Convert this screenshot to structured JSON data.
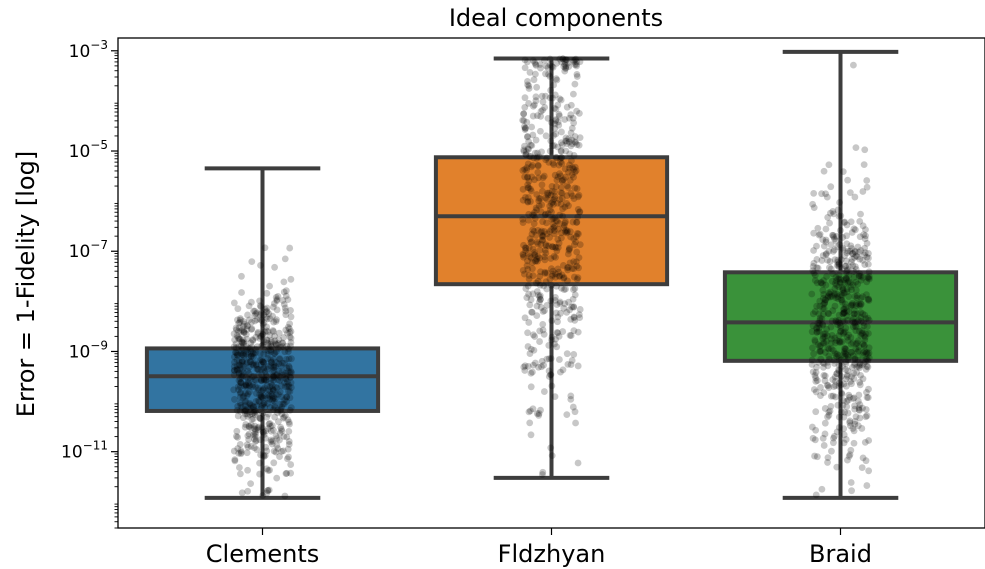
{
  "chart_data": {
    "type": "box",
    "title": "Ideal components",
    "xlabel": "",
    "ylabel": "Error = 1-Fidelity [log]",
    "yscale": "log",
    "ylim": [
      3e-13,
      0.0018
    ],
    "yticks": [
      {
        "value": 0.001,
        "label": "10",
        "exp": "−3"
      },
      {
        "value": 1e-05,
        "label": "10",
        "exp": "−5"
      },
      {
        "value": 1e-07,
        "label": "10",
        "exp": "−7"
      },
      {
        "value": 1e-09,
        "label": "10",
        "exp": "−9"
      },
      {
        "value": 1e-11,
        "label": "10",
        "exp": "−11"
      }
    ],
    "categories": [
      "Clements",
      "Fldzhyan",
      "Braid"
    ],
    "boxes": [
      {
        "name": "Clements",
        "color": "#3274a1",
        "whisker_low": 1.2e-12,
        "q1": 6.5e-11,
        "median": 3.2e-10,
        "q3": 1.15e-09,
        "whisker_high": 4.5e-06
      },
      {
        "name": "Fldzhyan",
        "color": "#e1812c",
        "whisker_low": 3e-12,
        "q1": 2.2e-08,
        "median": 5e-07,
        "q3": 7.5e-06,
        "whisker_high": 0.0007
      },
      {
        "name": "Braid",
        "color": "#3a923a",
        "whisker_low": 1.2e-12,
        "q1": 6.5e-10,
        "median": 3.8e-09,
        "q3": 3.8e-08,
        "whisker_high": 0.00095
      }
    ],
    "strip_points": {
      "color": "#000000",
      "opacity": 0.22,
      "per_category": 600
    },
    "grid": false,
    "legend": "none"
  }
}
